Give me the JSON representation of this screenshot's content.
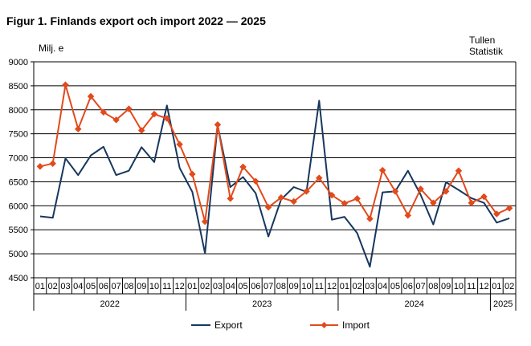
{
  "title": "Figur 1. Finlands export och import 2022 — 2025",
  "source_lines": [
    "Tullen",
    "Statistik"
  ],
  "colors": {
    "export": "#17375e",
    "import": "#e24a1c",
    "grid": "#000000",
    "axis": "#000000"
  },
  "chart_data": {
    "type": "line",
    "title": "Figur 1. Finlands export och import 2022 — 2025",
    "ylabel": "Milj. e",
    "xlabel": "",
    "ylim": [
      4500,
      9000
    ],
    "yticks": [
      4500,
      5000,
      5500,
      6000,
      6500,
      7000,
      7500,
      8000,
      8500,
      9000
    ],
    "grid": true,
    "legend_position": "bottom",
    "categories": [
      "01",
      "02",
      "03",
      "04",
      "05",
      "06",
      "07",
      "08",
      "09",
      "10",
      "11",
      "12",
      "01",
      "02",
      "03",
      "04",
      "05",
      "06",
      "07",
      "08",
      "09",
      "10",
      "11",
      "12",
      "01",
      "02",
      "03",
      "04",
      "05",
      "06",
      "07",
      "08",
      "09",
      "10",
      "11",
      "12",
      "01",
      "02"
    ],
    "years": [
      {
        "label": "2022",
        "months": 12
      },
      {
        "label": "2023",
        "months": 12
      },
      {
        "label": "2024",
        "months": 12
      },
      {
        "label": "2025",
        "months": 2
      }
    ],
    "series": [
      {
        "name": "Export",
        "marker": "none",
        "values": [
          5780,
          5750,
          6990,
          6640,
          7050,
          7230,
          6640,
          6730,
          7220,
          6910,
          8090,
          6790,
          6290,
          5010,
          7680,
          6390,
          6600,
          6260,
          5360,
          6130,
          6390,
          6290,
          8190,
          5710,
          5770,
          5430,
          4730,
          6280,
          6300,
          6730,
          6230,
          5610,
          6490,
          6330,
          6160,
          6060,
          5650,
          5740
        ]
      },
      {
        "name": "Import",
        "marker": "diamond",
        "values": [
          6820,
          6880,
          8520,
          7600,
          8280,
          7950,
          7790,
          8020,
          7570,
          7910,
          7820,
          7280,
          6660,
          5670,
          7690,
          6150,
          6810,
          6510,
          5970,
          6170,
          6090,
          6300,
          6580,
          6220,
          6050,
          6150,
          5730,
          6740,
          6300,
          5800,
          6350,
          6060,
          6300,
          6730,
          6060,
          6190,
          5830,
          5950
        ]
      }
    ]
  }
}
